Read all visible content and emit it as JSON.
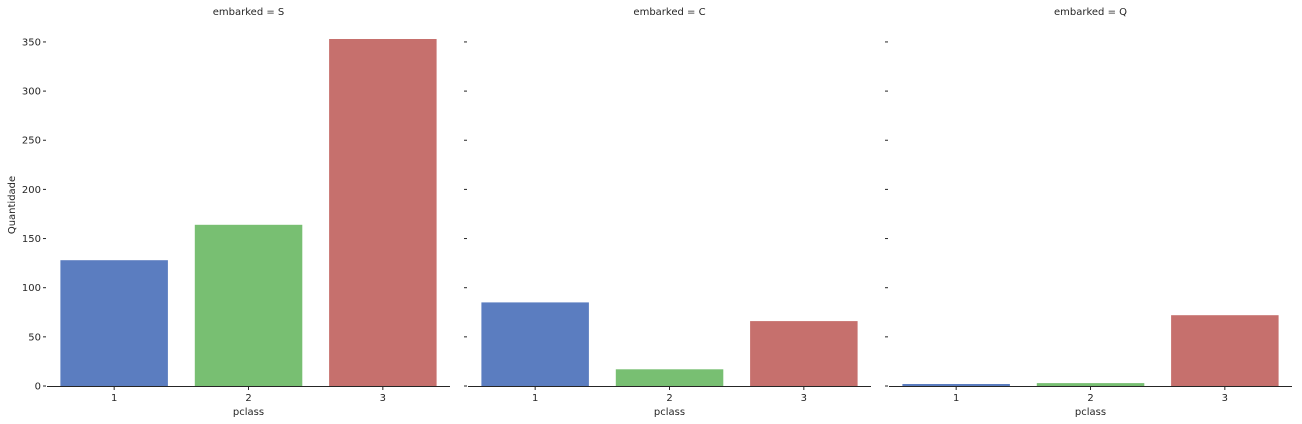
{
  "chart_data": {
    "type": "bar",
    "ylabel": "Quantidade",
    "xlabel": "pclass",
    "ylim": [
      0,
      360
    ],
    "yticks": [
      0,
      50,
      100,
      150,
      200,
      250,
      300,
      350
    ],
    "categories": [
      "1",
      "2",
      "3"
    ],
    "colors": [
      "#5b7dc0",
      "#78bf72",
      "#c6706d"
    ],
    "grid": false,
    "facets": [
      {
        "title": "embarked = S",
        "values": [
          128,
          164,
          353
        ]
      },
      {
        "title": "embarked = C",
        "values": [
          85,
          17,
          66
        ]
      },
      {
        "title": "embarked = Q",
        "values": [
          2,
          3,
          72
        ]
      }
    ]
  }
}
